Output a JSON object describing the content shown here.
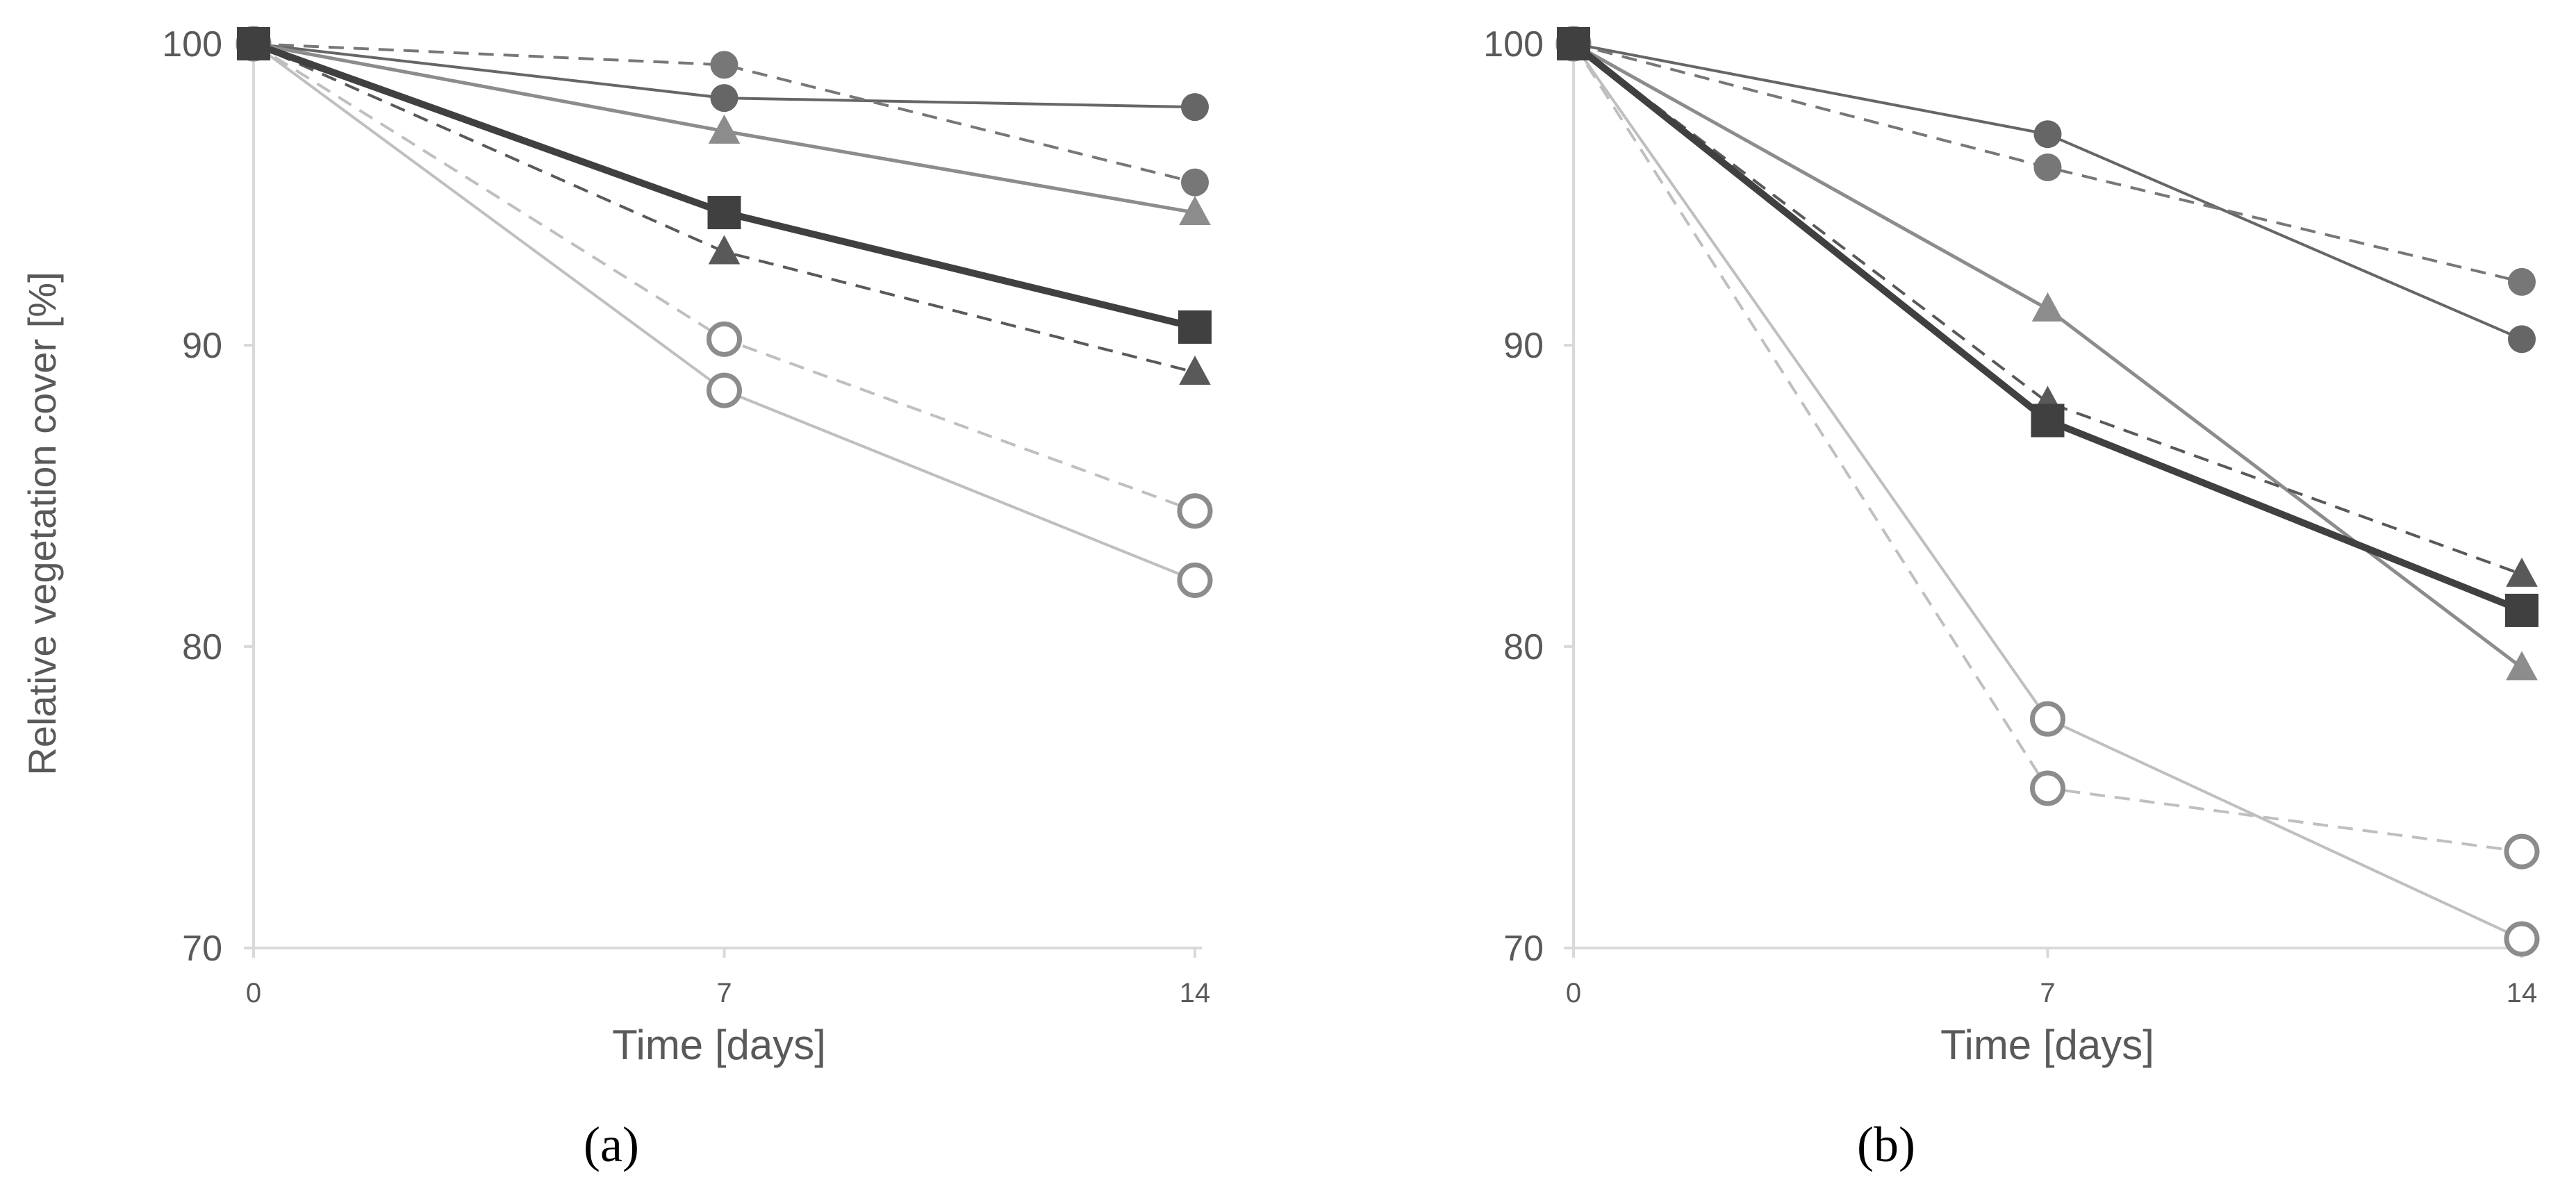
{
  "chart_data": [
    {
      "panel": "a",
      "panel_label": "(a)",
      "type": "line",
      "x": [
        0,
        7,
        14
      ],
      "xticks": [
        "0",
        "7",
        "14"
      ],
      "xlabel": "Time [days]",
      "ylabel": "Relative vegetation cover [%]",
      "ylim": [
        70,
        100
      ],
      "yticks": [
        70,
        80,
        90,
        100
      ],
      "grid": false,
      "series": [
        {
          "name": "dark circle solid",
          "values": [
            100,
            98.2,
            97.9
          ],
          "color": "#666666",
          "dash": "solid",
          "marker": "circle",
          "width": 4
        },
        {
          "name": "dark circle dashed",
          "values": [
            100,
            99.3,
            95.4
          ],
          "color": "#777777",
          "dash": "dashed",
          "marker": "circle",
          "width": 4
        },
        {
          "name": "triangle solid",
          "values": [
            100,
            97.1,
            94.4
          ],
          "color": "#8c8c8c",
          "dash": "solid",
          "marker": "triangle",
          "width": 5
        },
        {
          "name": "mean square",
          "values": [
            100,
            94.4,
            90.6
          ],
          "color": "#404040",
          "dash": "solid",
          "marker": "square",
          "width": 10
        },
        {
          "name": "triangle dashed",
          "values": [
            100,
            93.1,
            89.1
          ],
          "color": "#595959",
          "dash": "dashed",
          "marker": "triangle",
          "width": 4
        },
        {
          "name": "open circle dashed",
          "values": [
            100,
            90.2,
            84.5
          ],
          "color": "#bfbfbf",
          "dash": "dashed",
          "marker": "open-circle",
          "width": 4
        },
        {
          "name": "open circle solid",
          "values": [
            100,
            88.5,
            82.2
          ],
          "color": "#bfbfbf",
          "dash": "solid",
          "marker": "open-circle",
          "width": 4
        }
      ]
    },
    {
      "panel": "b",
      "panel_label": "(b)",
      "type": "line",
      "x": [
        0,
        7,
        14
      ],
      "xticks": [
        "0",
        "7",
        "14"
      ],
      "xlabel": "Time [days]",
      "ylabel": "",
      "ylim": [
        70,
        100
      ],
      "yticks": [
        70,
        80,
        90,
        100
      ],
      "grid": false,
      "series": [
        {
          "name": "dark circle solid",
          "values": [
            100,
            97.0,
            90.2
          ],
          "color": "#666666",
          "dash": "solid",
          "marker": "circle",
          "width": 4
        },
        {
          "name": "dark circle dashed",
          "values": [
            100,
            95.9,
            92.1
          ],
          "color": "#777777",
          "dash": "dashed",
          "marker": "circle",
          "width": 4
        },
        {
          "name": "triangle solid",
          "values": [
            100,
            91.2,
            79.3
          ],
          "color": "#8c8c8c",
          "dash": "solid",
          "marker": "triangle",
          "width": 5
        },
        {
          "name": "mean square",
          "values": [
            100,
            87.5,
            81.2
          ],
          "color": "#404040",
          "dash": "solid",
          "marker": "square",
          "width": 10
        },
        {
          "name": "triangle dashed",
          "values": [
            100,
            88.1,
            82.4
          ],
          "color": "#595959",
          "dash": "dashed",
          "marker": "triangle",
          "width": 4
        },
        {
          "name": "open circle dashed",
          "values": [
            100,
            75.3,
            73.2
          ],
          "color": "#bfbfbf",
          "dash": "dashed",
          "marker": "open-circle",
          "width": 4
        },
        {
          "name": "open circle solid",
          "values": [
            100,
            77.6,
            70.3
          ],
          "color": "#bfbfbf",
          "dash": "solid",
          "marker": "open-circle",
          "width": 4
        }
      ]
    }
  ]
}
